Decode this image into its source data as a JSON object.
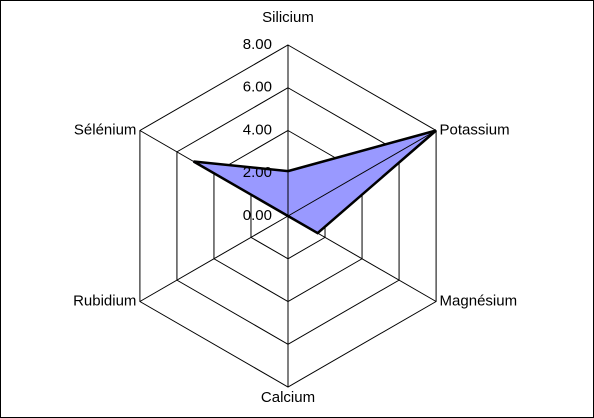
{
  "chart_data": {
    "type": "radar",
    "categories": [
      "Silicium",
      "Potassium",
      "Magnésium",
      "Calcium",
      "Rubidium",
      "Sélénium"
    ],
    "series": [
      {
        "color": "#9999ff",
        "values": [
          2.1,
          8,
          1.6,
          0,
          0,
          5.1
        ]
      }
    ],
    "ylim": [
      0,
      8
    ],
    "yticks": [
      {
        "value": 0,
        "label": "0.00"
      },
      {
        "value": 2,
        "label": "2.00"
      },
      {
        "value": 4,
        "label": "4.00"
      },
      {
        "value": 6,
        "label": "6.00"
      },
      {
        "value": 8,
        "label": "8.00"
      }
    ],
    "grid": true
  }
}
